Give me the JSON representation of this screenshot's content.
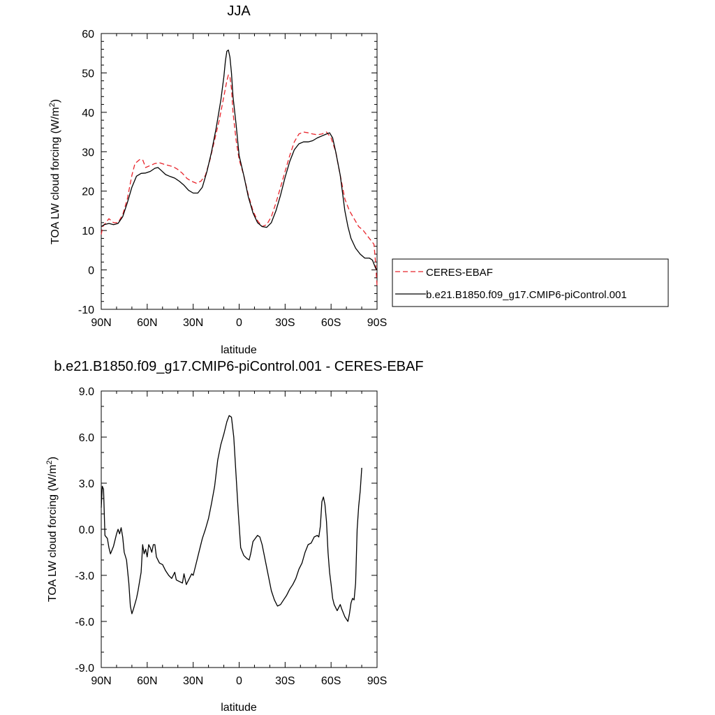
{
  "chart_data": [
    {
      "type": "line",
      "title": "JJA",
      "xlabel": "latitude",
      "ylabel": "TOA LW cloud forcing (W/m²)",
      "ylabel_main": "TOA LW cloud forcing (W/m",
      "ylabel_sup": "2",
      "ylabel_tail": ")",
      "xlim": [
        90,
        -90
      ],
      "ylim": [
        -10,
        60
      ],
      "x_ticks": [
        90,
        60,
        30,
        0,
        -30,
        -60,
        -90
      ],
      "x_tick_labels": [
        "90N",
        "60N",
        "30N",
        "0",
        "30S",
        "60S",
        "90S"
      ],
      "y_ticks": [
        -10,
        0,
        10,
        20,
        30,
        40,
        50,
        60
      ],
      "y_tick_labels": [
        "-10",
        "0",
        "10",
        "20",
        "30",
        "40",
        "50",
        "60"
      ],
      "grid": false,
      "legend_position": "right",
      "series": [
        {
          "name": "CERES-EBAF",
          "color": "#e8242b",
          "dash": "dashed",
          "points": [
            [
              90,
              9
            ],
            [
              89,
              11
            ],
            [
              87,
              12
            ],
            [
              85,
              13
            ],
            [
              82,
              12
            ],
            [
              79,
              12
            ],
            [
              76,
              14
            ],
            [
              73,
              18
            ],
            [
              70,
              24
            ],
            [
              68,
              27
            ],
            [
              65,
              28
            ],
            [
              63,
              28
            ],
            [
              61,
              26
            ],
            [
              58,
              26.5
            ],
            [
              55,
              27
            ],
            [
              52,
              27.2
            ],
            [
              49,
              26.8
            ],
            [
              46,
              26.5
            ],
            [
              43,
              26.2
            ],
            [
              40,
              25.5
            ],
            [
              37,
              24.5
            ],
            [
              34,
              23.2
            ],
            [
              31,
              22.5
            ],
            [
              28,
              22
            ],
            [
              25,
              22.5
            ],
            [
              22,
              24
            ],
            [
              19,
              28
            ],
            [
              16,
              33
            ],
            [
              13,
              38
            ],
            [
              10,
              44
            ],
            [
              8,
              48
            ],
            [
              7,
              49.5
            ],
            [
              6,
              49
            ],
            [
              5,
              46
            ],
            [
              4,
              40
            ],
            [
              2,
              33
            ],
            [
              0,
              28
            ],
            [
              -3,
              24
            ],
            [
              -6,
              19
            ],
            [
              -9,
              15
            ],
            [
              -12,
              12.5
            ],
            [
              -15,
              11
            ],
            [
              -18,
              11.5
            ],
            [
              -21,
              13.5
            ],
            [
              -24,
              17
            ],
            [
              -27,
              21
            ],
            [
              -30,
              25
            ],
            [
              -33,
              29
            ],
            [
              -36,
              32.5
            ],
            [
              -39,
              34.5
            ],
            [
              -42,
              35
            ],
            [
              -45,
              34.8
            ],
            [
              -48,
              34.5
            ],
            [
              -51,
              34.3
            ],
            [
              -54,
              34.5
            ],
            [
              -57,
              35
            ],
            [
              -60,
              33.5
            ],
            [
              -63,
              30
            ],
            [
              -66,
              24
            ],
            [
              -69,
              18
            ],
            [
              -72,
              15
            ],
            [
              -75,
              13
            ],
            [
              -78,
              11
            ],
            [
              -81,
              10
            ],
            [
              -84,
              8.5
            ],
            [
              -86,
              7.5
            ],
            [
              -88,
              6.5
            ],
            [
              -89,
              2
            ],
            [
              -90,
              -4
            ]
          ]
        },
        {
          "name": "b.e21.B1850.f09_g17.CMIP6-piControl.001",
          "color": "#000000",
          "dash": "solid",
          "points": [
            [
              90,
              11
            ],
            [
              88,
              11.5
            ],
            [
              85,
              11.8
            ],
            [
              82,
              11.5
            ],
            [
              79,
              11.8
            ],
            [
              76,
              13.5
            ],
            [
              73,
              17
            ],
            [
              70,
              21
            ],
            [
              67,
              23.8
            ],
            [
              64,
              24.5
            ],
            [
              61,
              24.6
            ],
            [
              58,
              25
            ],
            [
              55,
              25.8
            ],
            [
              53,
              26
            ],
            [
              51,
              25.3
            ],
            [
              48,
              24.2
            ],
            [
              45,
              23.7
            ],
            [
              42,
              23.3
            ],
            [
              39,
              22.5
            ],
            [
              36,
              21.5
            ],
            [
              33,
              20.2
            ],
            [
              30,
              19.5
            ],
            [
              27,
              19.5
            ],
            [
              24,
              21
            ],
            [
              21,
              25
            ],
            [
              18,
              30
            ],
            [
              15,
              36
            ],
            [
              12,
              43
            ],
            [
              10,
              49
            ],
            [
              9,
              53
            ],
            [
              8,
              55.5
            ],
            [
              7,
              55.8
            ],
            [
              6,
              54
            ],
            [
              5,
              50
            ],
            [
              4,
              44
            ],
            [
              2,
              37
            ],
            [
              0,
              29
            ],
            [
              -3,
              24
            ],
            [
              -6,
              18.5
            ],
            [
              -9,
              14.5
            ],
            [
              -12,
              12
            ],
            [
              -15,
              11
            ],
            [
              -18,
              10.8
            ],
            [
              -21,
              12
            ],
            [
              -24,
              15
            ],
            [
              -27,
              19
            ],
            [
              -30,
              23.5
            ],
            [
              -33,
              27.5
            ],
            [
              -36,
              30.5
            ],
            [
              -39,
              32
            ],
            [
              -42,
              32.5
            ],
            [
              -45,
              32.5
            ],
            [
              -48,
              32.8
            ],
            [
              -51,
              33.5
            ],
            [
              -54,
              34
            ],
            [
              -57,
              34.5
            ],
            [
              -59,
              34.8
            ],
            [
              -61,
              33.5
            ],
            [
              -63,
              30
            ],
            [
              -66,
              24
            ],
            [
              -69,
              15
            ],
            [
              -71,
              11
            ],
            [
              -73,
              8
            ],
            [
              -76,
              5.5
            ],
            [
              -79,
              4
            ],
            [
              -82,
              3
            ],
            [
              -85,
              3
            ],
            [
              -87,
              2.5
            ],
            [
              -89,
              0.5
            ],
            [
              -90,
              0
            ]
          ]
        }
      ]
    },
    {
      "type": "line",
      "title": "b.e21.B1850.f09_g17.CMIP6-piControl.001 - CERES-EBAF",
      "xlabel": "latitude",
      "ylabel": "TOA LW cloud forcing (W/m²)",
      "ylabel_main": "TOA LW cloud forcing (W/m",
      "ylabel_sup": "2",
      "ylabel_tail": ")",
      "xlim": [
        90,
        -90
      ],
      "ylim": [
        -9,
        9
      ],
      "x_ticks": [
        90,
        60,
        30,
        0,
        -30,
        -60,
        -90
      ],
      "x_tick_labels": [
        "90N",
        "60N",
        "30N",
        "0",
        "30S",
        "60S",
        "90S"
      ],
      "y_ticks": [
        -9,
        -6,
        -3,
        0,
        3,
        6,
        9
      ],
      "y_tick_labels": [
        "-9.0",
        "-6.0",
        "-3.0",
        "0.0",
        "3.0",
        "6.0",
        "9.0"
      ],
      "grid": false,
      "series": [
        {
          "color": "#000000",
          "dash": "solid",
          "points": [
            [
              90,
              1.4
            ],
            [
              89.3,
              2.8
            ],
            [
              88.5,
              2.6
            ],
            [
              87.6,
              -0.4
            ],
            [
              86,
              -0.6
            ],
            [
              85,
              -1.2
            ],
            [
              84,
              -1.6
            ],
            [
              82,
              -1.1
            ],
            [
              80,
              -0.3
            ],
            [
              79,
              0
            ],
            [
              78,
              -0.3
            ],
            [
              77,
              0.1
            ],
            [
              76,
              -0.5
            ],
            [
              75,
              -1.5
            ],
            [
              73.5,
              -2
            ],
            [
              72,
              -3.5
            ],
            [
              71,
              -5
            ],
            [
              70,
              -5.5
            ],
            [
              69,
              -5.2
            ],
            [
              67,
              -4.5
            ],
            [
              66,
              -4
            ],
            [
              64,
              -2.8
            ],
            [
              63,
              -1
            ],
            [
              62,
              -1.6
            ],
            [
              61,
              -1.3
            ],
            [
              60,
              -1.8
            ],
            [
              59,
              -1
            ],
            [
              58,
              -1.2
            ],
            [
              57,
              -1.5
            ],
            [
              56,
              -1
            ],
            [
              55,
              -1
            ],
            [
              54,
              -1.8
            ],
            [
              52,
              -2.2
            ],
            [
              50,
              -2.3
            ],
            [
              48,
              -2.7
            ],
            [
              46,
              -3
            ],
            [
              44,
              -3.2
            ],
            [
              42,
              -2.8
            ],
            [
              41,
              -3.3
            ],
            [
              39,
              -3.4
            ],
            [
              37,
              -3.5
            ],
            [
              36,
              -2.9
            ],
            [
              34.5,
              -3.6
            ],
            [
              33,
              -3.3
            ],
            [
              31,
              -2.9
            ],
            [
              30,
              -3
            ],
            [
              28,
              -2.2
            ],
            [
              26,
              -1.4
            ],
            [
              24,
              -0.6
            ],
            [
              22,
              0
            ],
            [
              20,
              0.7
            ],
            [
              18,
              1.7
            ],
            [
              16,
              2.8
            ],
            [
              14,
              4.5
            ],
            [
              12,
              5.5
            ],
            [
              10,
              6.2
            ],
            [
              8,
              7
            ],
            [
              6.5,
              7.4
            ],
            [
              5,
              7.3
            ],
            [
              3.5,
              6
            ],
            [
              2,
              3.5
            ],
            [
              0.5,
              1
            ],
            [
              -1,
              -1.2
            ],
            [
              -3,
              -1.7
            ],
            [
              -5,
              -1.9
            ],
            [
              -6.5,
              -2
            ],
            [
              -7.5,
              -1.6
            ],
            [
              -9,
              -0.8
            ],
            [
              -10.5,
              -0.6
            ],
            [
              -12,
              -0.4
            ],
            [
              -13.5,
              -0.5
            ],
            [
              -15,
              -1
            ],
            [
              -17,
              -2
            ],
            [
              -19,
              -3
            ],
            [
              -21,
              -4
            ],
            [
              -23,
              -4.6
            ],
            [
              -25,
              -5
            ],
            [
              -27,
              -4.9
            ],
            [
              -29,
              -4.6
            ],
            [
              -31,
              -4.3
            ],
            [
              -33,
              -3.9
            ],
            [
              -35,
              -3.6
            ],
            [
              -37,
              -3.2
            ],
            [
              -39,
              -2.6
            ],
            [
              -41,
              -2.2
            ],
            [
              -43,
              -1.5
            ],
            [
              -45,
              -1
            ],
            [
              -47,
              -0.9
            ],
            [
              -49,
              -0.5
            ],
            [
              -51,
              -0.4
            ],
            [
              -52,
              -0.5
            ],
            [
              -53,
              0.2
            ],
            [
              -54,
              1.8
            ],
            [
              -55,
              2.1
            ],
            [
              -56,
              1.6
            ],
            [
              -57,
              0.5
            ],
            [
              -58,
              -1.5
            ],
            [
              -59,
              -2.8
            ],
            [
              -60,
              -3.6
            ],
            [
              -61,
              -4.5
            ],
            [
              -62,
              -4.9
            ],
            [
              -64,
              -5.3
            ],
            [
              -66,
              -4.9
            ],
            [
              -67,
              -5.2
            ],
            [
              -69,
              -5.7
            ],
            [
              -71,
              -6
            ],
            [
              -72,
              -5.5
            ],
            [
              -73,
              -4.8
            ],
            [
              -74,
              -4.5
            ],
            [
              -75,
              -4.6
            ],
            [
              -76,
              -3.5
            ],
            [
              -77,
              0
            ],
            [
              -78,
              1.5
            ],
            [
              -79,
              2.5
            ],
            [
              -80,
              4
            ]
          ]
        }
      ]
    }
  ]
}
